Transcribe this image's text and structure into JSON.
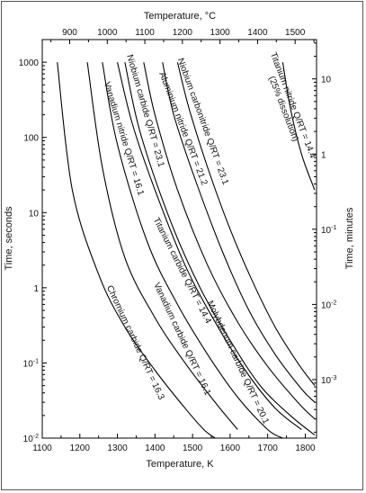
{
  "chart_data": {
    "type": "line",
    "title": "",
    "xlabel_bottom": "Temperature, K",
    "xlabel_top": "Temperature, °C",
    "ylabel_left": "Time, seconds",
    "ylabel_right": "Time, minutes",
    "xlim": [
      1100,
      1830
    ],
    "ylim_seconds": [
      0.01,
      2000
    ],
    "y_scale": "log",
    "grid": false,
    "x_ticks_bottom": [
      1100,
      1200,
      1300,
      1400,
      1500,
      1600,
      1700,
      1800
    ],
    "x_tick_labels_bottom": [
      "1100",
      "1200",
      "1300",
      "1400",
      "1500",
      "1600",
      "1700",
      "1800"
    ],
    "x_ticks_top_celsius": [
      900,
      1000,
      1100,
      1200,
      1300,
      1400,
      1500
    ],
    "x_tick_labels_top": [
      "900",
      "1000",
      "1100",
      "1200",
      "1300",
      "1400",
      "1500"
    ],
    "y_ticks_left": [
      0.01,
      0.1,
      1,
      10,
      100,
      1000
    ],
    "y_tick_labels_left": [
      "10-2",
      "10-1",
      "1",
      "10",
      "100",
      "1000"
    ],
    "y_ticks_right_minutes": [
      0.001,
      0.01,
      0.1,
      1,
      10
    ],
    "y_tick_labels_right": [
      "10-3",
      "10-2",
      "10-1",
      "1",
      "10"
    ],
    "series": [
      {
        "name": "Chromium carbide Q/RT = 16.3",
        "T": [
          1140,
          1180,
          1250,
          1320,
          1400,
          1480,
          1530,
          1560
        ],
        "t": [
          1000,
          20,
          1.5,
          0.3,
          0.08,
          0.025,
          0.013,
          0.01
        ]
      },
      {
        "name": "Vanadium carbide Q/RT = 16.1",
        "T": [
          1220,
          1260,
          1320,
          1400,
          1480,
          1560,
          1620
        ],
        "t": [
          1000,
          40,
          2.5,
          0.4,
          0.1,
          0.03,
          0.013
        ]
      },
      {
        "name": "Molybdenum carbide Q/RT = 20.1",
        "T": [
          1260,
          1300,
          1380,
          1460,
          1540,
          1620,
          1700,
          1740
        ],
        "t": [
          1000,
          80,
          4,
          0.6,
          0.13,
          0.035,
          0.013,
          0.01
        ]
      },
      {
        "name": "Titanium carbide Q/RT = 14.4",
        "T": [
          1300,
          1340,
          1400,
          1480,
          1560,
          1640,
          1720,
          1790
        ],
        "t": [
          1000,
          150,
          20,
          2,
          0.35,
          0.08,
          0.025,
          0.013
        ]
      },
      {
        "name": "Vanadium nitride Q/RT = 16.1",
        "T": [
          1320,
          1360,
          1440,
          1520,
          1600,
          1680,
          1760,
          1825
        ],
        "t": [
          1000,
          120,
          8,
          1,
          0.2,
          0.05,
          0.02,
          0.011
        ]
      },
      {
        "name": "Niobium carbide Q/RT = 23.1",
        "T": [
          1370,
          1400,
          1460,
          1540,
          1620,
          1700,
          1780,
          1825
        ],
        "t": [
          1000,
          200,
          20,
          2,
          0.35,
          0.09,
          0.03,
          0.018
        ]
      },
      {
        "name": "Aluminium nitride Q/RT = 21.2",
        "T": [
          1420,
          1450,
          1510,
          1580,
          1650,
          1720,
          1790,
          1825
        ],
        "t": [
          1000,
          200,
          25,
          3,
          0.5,
          0.13,
          0.045,
          0.03
        ]
      },
      {
        "name": "Niobium carbonitride Q/RT = 23.1",
        "T": [
          1460,
          1490,
          1540,
          1600,
          1660,
          1720,
          1780,
          1825
        ],
        "t": [
          1000,
          250,
          40,
          6,
          1.2,
          0.3,
          0.1,
          0.05
        ]
      },
      {
        "name": "Titanium nitride Q/RT = 14.4 (25% dissolution)",
        "T": [
          1740,
          1760,
          1790,
          1825
        ],
        "t": [
          1000,
          250,
          60,
          20
        ]
      }
    ],
    "curve_labels": [
      {
        "lines": [
          "Chromium carbide Q/RT = 16.3"
        ]
      },
      {
        "lines": [
          "Vanadium carbide Q/RT = 16.1"
        ]
      },
      {
        "lines": [
          "Molybdenum carbide Q/RT = 20.1"
        ]
      },
      {
        "lines": [
          "Titanium carbide Q/RT = 14.4"
        ]
      },
      {
        "lines": [
          "Vanadium nitride Q/RT = 16.1"
        ]
      },
      {
        "lines": [
          "Niobium carbide Q/RT = 23.1"
        ]
      },
      {
        "lines": [
          "Aluminium nitride Q/RT = 21.2"
        ]
      },
      {
        "lines": [
          "Niobium carbonitride Q/RT = 23.1"
        ]
      },
      {
        "lines": [
          "Titanium nitride Q/RT = 14.4",
          "(25% dissolution)"
        ]
      }
    ]
  }
}
